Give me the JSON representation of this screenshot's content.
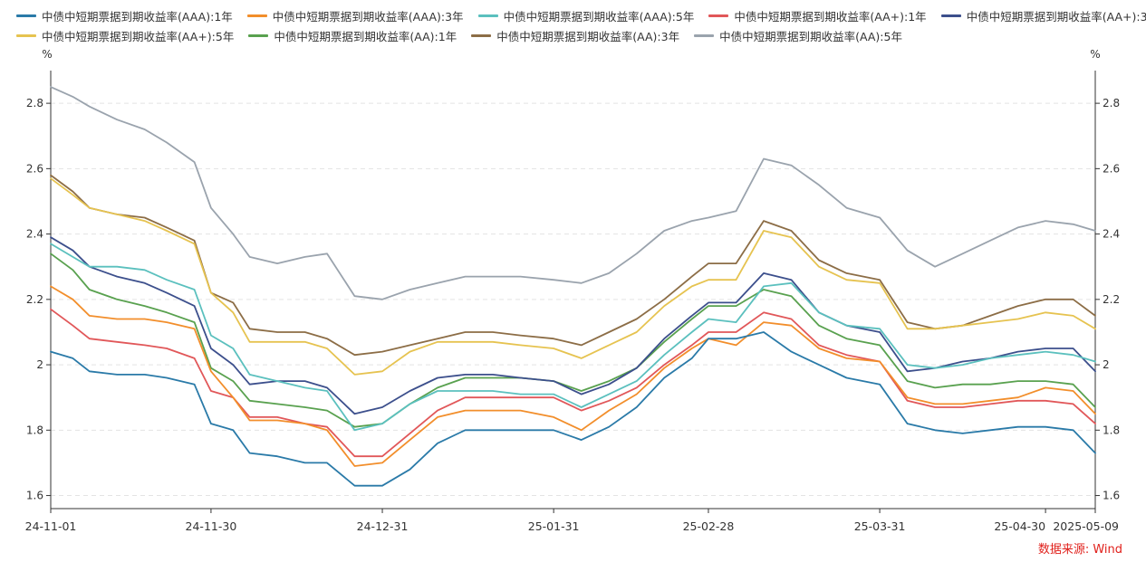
{
  "source": "数据来源: Wind",
  "chart_data": {
    "type": "line",
    "unit_left": "%",
    "unit_right": "%",
    "y_ticks": [
      "1.6",
      "1.8",
      "2",
      "2.2",
      "2.4",
      "2.6",
      "2.8"
    ],
    "ylim": [
      1.56,
      2.9
    ],
    "x_ticks": [
      {
        "label": "24-11-01",
        "date": "2024-11-01"
      },
      {
        "label": "24-11-30",
        "date": "2024-11-30"
      },
      {
        "label": "24-12-31",
        "date": "2024-12-31"
      },
      {
        "label": "25-01-31",
        "date": "2025-01-31"
      },
      {
        "label": "25-02-28",
        "date": "2025-02-28"
      },
      {
        "label": "25-03-31",
        "date": "2025-03-31"
      },
      {
        "label": "25-04-30",
        "date": "2025-04-30"
      },
      {
        "label": "2025-05-09",
        "date": "2025-05-09"
      }
    ],
    "x": [
      "2024-11-01",
      "2024-11-05",
      "2024-11-08",
      "2024-11-13",
      "2024-11-18",
      "2024-11-22",
      "2024-11-27",
      "2024-11-30",
      "2024-12-04",
      "2024-12-07",
      "2024-12-12",
      "2024-12-17",
      "2024-12-21",
      "2024-12-26",
      "2024-12-31",
      "2025-01-05",
      "2025-01-10",
      "2025-01-15",
      "2025-01-20",
      "2025-01-25",
      "2025-01-31",
      "2025-02-05",
      "2025-02-10",
      "2025-02-15",
      "2025-02-20",
      "2025-02-25",
      "2025-02-28",
      "2025-03-05",
      "2025-03-10",
      "2025-03-15",
      "2025-03-20",
      "2025-03-25",
      "2025-03-31",
      "2025-04-05",
      "2025-04-10",
      "2025-04-15",
      "2025-04-20",
      "2025-04-25",
      "2025-04-30",
      "2025-05-05",
      "2025-05-09"
    ],
    "series": [
      {
        "name": "中债中短期票据到期收益率(AAA):1年",
        "color": "#2a7aa8",
        "values": [
          2.04,
          2.02,
          1.98,
          1.97,
          1.97,
          1.96,
          1.94,
          1.82,
          1.8,
          1.73,
          1.72,
          1.7,
          1.7,
          1.63,
          1.63,
          1.68,
          1.76,
          1.8,
          1.8,
          1.8,
          1.8,
          1.77,
          1.81,
          1.87,
          1.96,
          2.02,
          2.08,
          2.08,
          2.1,
          2.04,
          2.0,
          1.96,
          1.94,
          1.82,
          1.8,
          1.79,
          1.8,
          1.81,
          1.81,
          1.8,
          1.73
        ]
      },
      {
        "name": "中债中短期票据到期收益率(AAA):3年",
        "color": "#f28e2b",
        "values": [
          2.24,
          2.2,
          2.15,
          2.14,
          2.14,
          2.13,
          2.11,
          1.98,
          1.9,
          1.83,
          1.83,
          1.82,
          1.8,
          1.69,
          1.7,
          1.77,
          1.84,
          1.86,
          1.86,
          1.86,
          1.84,
          1.8,
          1.86,
          1.91,
          1.99,
          2.05,
          2.08,
          2.06,
          2.13,
          2.12,
          2.05,
          2.02,
          2.01,
          1.9,
          1.88,
          1.88,
          1.89,
          1.9,
          1.93,
          1.92,
          1.85
        ]
      },
      {
        "name": "中债中短期票据到期收益率(AAA):5年",
        "color": "#5bc0be",
        "values": [
          2.37,
          2.33,
          2.3,
          2.3,
          2.29,
          2.26,
          2.23,
          2.09,
          2.05,
          1.97,
          1.95,
          1.93,
          1.92,
          1.8,
          1.82,
          1.88,
          1.92,
          1.92,
          1.92,
          1.91,
          1.91,
          1.87,
          1.91,
          1.95,
          2.03,
          2.1,
          2.14,
          2.13,
          2.24,
          2.25,
          2.16,
          2.12,
          2.11,
          2.0,
          1.99,
          2.0,
          2.02,
          2.03,
          2.04,
          2.03,
          2.01
        ]
      },
      {
        "name": "中债中短期票据到期收益率(AA+):1年",
        "color": "#e15759",
        "values": [
          2.17,
          2.12,
          2.08,
          2.07,
          2.06,
          2.05,
          2.02,
          1.92,
          1.9,
          1.84,
          1.84,
          1.82,
          1.81,
          1.72,
          1.72,
          1.79,
          1.86,
          1.9,
          1.9,
          1.9,
          1.9,
          1.86,
          1.89,
          1.93,
          2.0,
          2.06,
          2.1,
          2.1,
          2.16,
          2.14,
          2.06,
          2.03,
          2.01,
          1.89,
          1.87,
          1.87,
          1.88,
          1.89,
          1.89,
          1.88,
          1.82
        ]
      },
      {
        "name": "中债中短期票据到期收益率(AA+):3年",
        "color": "#3c4f8c",
        "values": [
          2.39,
          2.35,
          2.3,
          2.27,
          2.25,
          2.22,
          2.18,
          2.05,
          2.0,
          1.94,
          1.95,
          1.95,
          1.93,
          1.85,
          1.87,
          1.92,
          1.96,
          1.97,
          1.97,
          1.96,
          1.95,
          1.91,
          1.94,
          1.99,
          2.08,
          2.15,
          2.19,
          2.19,
          2.28,
          2.26,
          2.16,
          2.12,
          2.1,
          1.98,
          1.99,
          2.01,
          2.02,
          2.04,
          2.05,
          2.05,
          1.98
        ]
      },
      {
        "name": "中债中短期票据到期收益率(AA+):5年",
        "color": "#e6c350",
        "values": [
          2.57,
          2.52,
          2.48,
          2.46,
          2.44,
          2.41,
          2.37,
          2.22,
          2.16,
          2.07,
          2.07,
          2.07,
          2.05,
          1.97,
          1.98,
          2.04,
          2.07,
          2.07,
          2.07,
          2.06,
          2.05,
          2.02,
          2.06,
          2.1,
          2.18,
          2.24,
          2.26,
          2.26,
          2.41,
          2.39,
          2.3,
          2.26,
          2.25,
          2.11,
          2.11,
          2.12,
          2.13,
          2.14,
          2.16,
          2.15,
          2.11
        ]
      },
      {
        "name": "中债中短期票据到期收益率(AA):1年",
        "color": "#59a14f",
        "values": [
          2.34,
          2.29,
          2.23,
          2.2,
          2.18,
          2.16,
          2.13,
          1.99,
          1.95,
          1.89,
          1.88,
          1.87,
          1.86,
          1.81,
          1.82,
          1.88,
          1.93,
          1.96,
          1.96,
          1.96,
          1.95,
          1.92,
          1.95,
          1.99,
          2.07,
          2.14,
          2.18,
          2.18,
          2.23,
          2.21,
          2.12,
          2.08,
          2.06,
          1.95,
          1.93,
          1.94,
          1.94,
          1.95,
          1.95,
          1.94,
          1.87
        ]
      },
      {
        "name": "中债中短期票据到期收益率(AA):3年",
        "color": "#8c6d46",
        "values": [
          2.58,
          2.53,
          2.48,
          2.46,
          2.45,
          2.42,
          2.38,
          2.22,
          2.19,
          2.11,
          2.1,
          2.1,
          2.08,
          2.03,
          2.04,
          2.06,
          2.08,
          2.1,
          2.1,
          2.09,
          2.08,
          2.06,
          2.1,
          2.14,
          2.2,
          2.27,
          2.31,
          2.31,
          2.44,
          2.41,
          2.32,
          2.28,
          2.26,
          2.13,
          2.11,
          2.12,
          2.15,
          2.18,
          2.2,
          2.2,
          2.15
        ]
      },
      {
        "name": "中债中短期票据到期收益率(AA):5年",
        "color": "#9aa3ad",
        "values": [
          2.85,
          2.82,
          2.79,
          2.75,
          2.72,
          2.68,
          2.62,
          2.48,
          2.4,
          2.33,
          2.31,
          2.33,
          2.34,
          2.21,
          2.2,
          2.23,
          2.25,
          2.27,
          2.27,
          2.27,
          2.26,
          2.25,
          2.28,
          2.34,
          2.41,
          2.44,
          2.45,
          2.47,
          2.63,
          2.61,
          2.55,
          2.48,
          2.45,
          2.35,
          2.3,
          2.34,
          2.38,
          2.42,
          2.44,
          2.43,
          2.41
        ]
      }
    ]
  }
}
